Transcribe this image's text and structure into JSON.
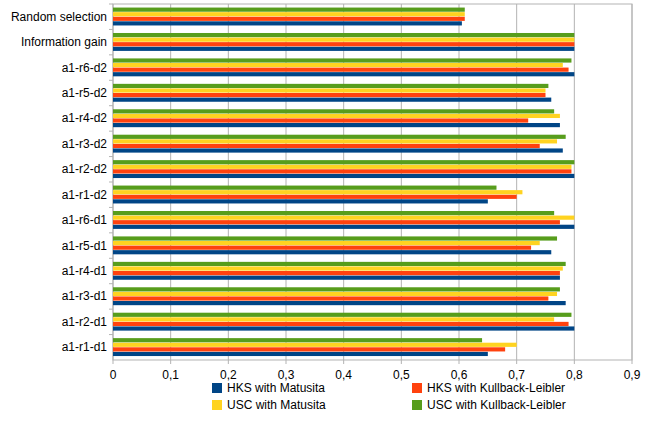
{
  "chart_data": {
    "type": "bar",
    "orientation": "horizontal",
    "grid": true,
    "legend": "bottom",
    "categories": [
      "Random selection",
      "Information gain",
      "a1-r6-d2",
      "a1-r5-d2",
      "a1-r4-d2",
      "a1-r3-d2",
      "a1-r2-d2",
      "a1-r1-d2",
      "a1-r6-d1",
      "a1-r5-d1",
      "a1-r4-d1",
      "a1-r3-d1",
      "a1-r2-d1",
      "a1-r1-d1"
    ],
    "series": [
      {
        "name": "HKS with Matusita",
        "color": "#004586",
        "values": [
          0.605,
          0.8,
          0.8,
          0.76,
          0.775,
          0.78,
          0.8,
          0.65,
          0.8,
          0.76,
          0.775,
          0.785,
          0.8,
          0.65
        ]
      },
      {
        "name": "HKS with Kullback-Leibler",
        "color": "#ff420e",
        "values": [
          0.61,
          0.8,
          0.79,
          0.75,
          0.72,
          0.74,
          0.795,
          0.7,
          0.775,
          0.725,
          0.775,
          0.755,
          0.79,
          0.68
        ]
      },
      {
        "name": "USC with Matusita",
        "color": "#ffd320",
        "values": [
          0.61,
          0.8,
          0.78,
          0.75,
          0.775,
          0.77,
          0.795,
          0.71,
          0.8,
          0.74,
          0.78,
          0.77,
          0.765,
          0.7
        ]
      },
      {
        "name": "USC with Kullback-Leibler",
        "color": "#579d1c",
        "values": [
          0.61,
          0.8,
          0.795,
          0.755,
          0.765,
          0.785,
          0.8,
          0.665,
          0.765,
          0.77,
          0.785,
          0.775,
          0.795,
          0.64
        ]
      }
    ],
    "xlim": [
      0,
      0.9
    ],
    "xticks": [
      0,
      {
        "value": 0.1,
        "label": "0,1"
      },
      {
        "value": 0.2,
        "label": "0,2"
      },
      {
        "value": 0.3,
        "label": "0,3"
      },
      {
        "value": 0.4,
        "label": "0,4"
      },
      {
        "value": 0.5,
        "label": "0,5"
      },
      {
        "value": 0.6,
        "label": "0,6"
      },
      {
        "value": 0.7,
        "label": "0,7"
      },
      {
        "value": 0.8,
        "label": "0,8"
      },
      {
        "value": 0.9,
        "label": "0,9"
      }
    ]
  }
}
